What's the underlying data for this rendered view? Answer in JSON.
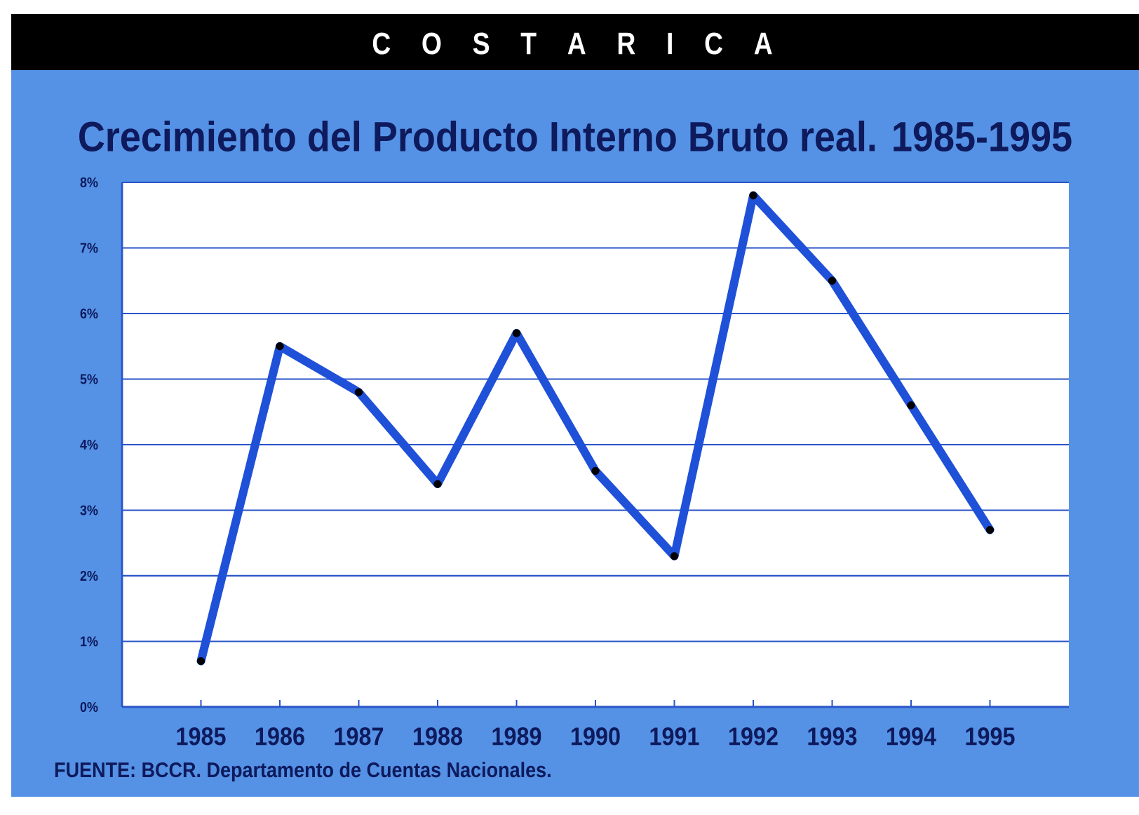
{
  "chart_data": {
    "type": "line",
    "title": "C O S T A R I C A",
    "subtitle": "Crecimiento del Producto Interno Bruto real. 1985-1995",
    "categories": [
      "1985",
      "1986",
      "1987",
      "1988",
      "1989",
      "1990",
      "1991",
      "1992",
      "1993",
      "1994",
      "1995"
    ],
    "values": [
      0.7,
      5.5,
      4.8,
      3.4,
      5.7,
      3.6,
      2.3,
      7.8,
      6.5,
      4.6,
      2.7
    ],
    "color": "#1f50d8",
    "marker": "circle",
    "line_style": "solid",
    "grid": "y",
    "ylim": [
      0,
      8
    ],
    "yticks": [
      {
        "value": 0,
        "label": "0%"
      },
      {
        "value": 1,
        "label": "1%"
      },
      {
        "value": 2,
        "label": "2%"
      },
      {
        "value": 3,
        "label": "3%"
      },
      {
        "value": 4,
        "label": "4%"
      },
      {
        "value": 5,
        "label": "5%"
      },
      {
        "value": 6,
        "label": "6%"
      },
      {
        "value": 7,
        "label": "7%"
      },
      {
        "value": 8,
        "label": "8%"
      }
    ],
    "annotations": [
      "FUENTE: BCCR. Departamento de Cuentas Nacionales."
    ]
  }
}
